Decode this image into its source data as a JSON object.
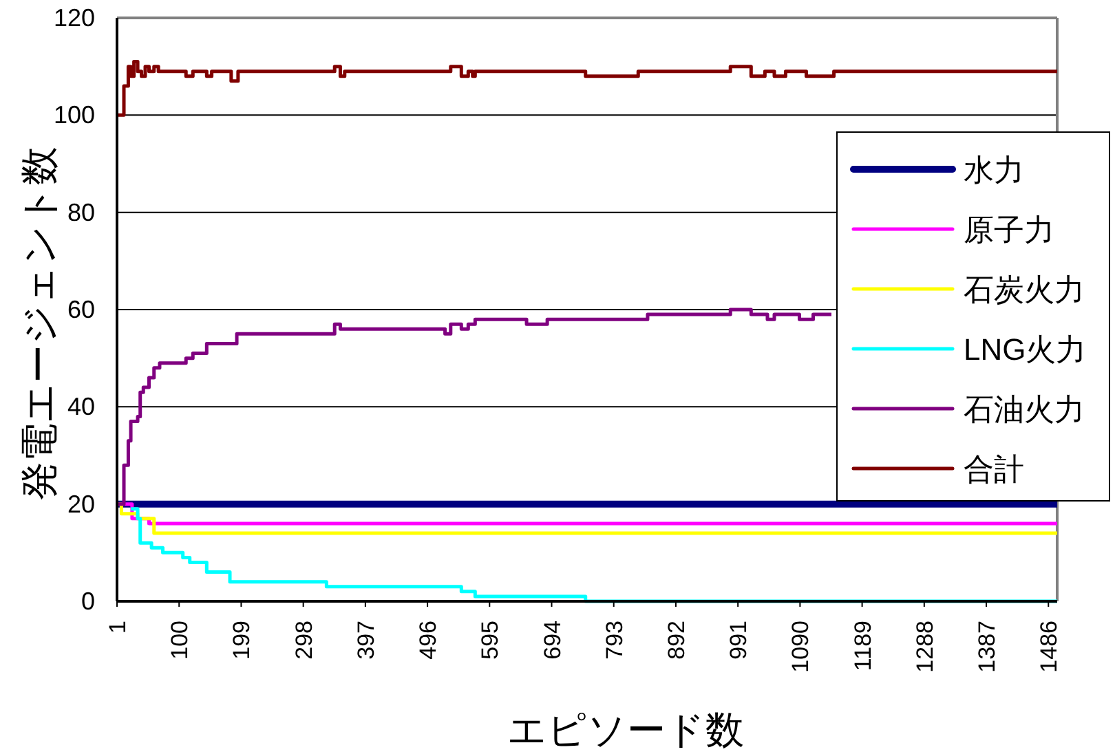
{
  "chart_data": {
    "type": "step",
    "xlabel": "エピソード数",
    "ylabel": "発電エージェント数",
    "xlim": [
      1,
      1500
    ],
    "xticks": [
      1,
      100,
      199,
      298,
      397,
      496,
      595,
      694,
      793,
      892,
      991,
      1090,
      1189,
      1288,
      1387,
      1486
    ],
    "ylim": [
      0,
      120
    ],
    "yticks": [
      0,
      20,
      40,
      60,
      80,
      100,
      120
    ],
    "grid": "y",
    "legend": "right",
    "marker": "none",
    "line_style": "solid",
    "series": [
      {
        "name": "水力",
        "color": "#000080",
        "x": [
          1,
          1500
        ],
        "values": [
          20,
          20
        ]
      },
      {
        "name": "原子力",
        "color": "#ff00ff",
        "x": [
          1,
          25,
          52,
          1500
        ],
        "values": [
          20,
          17,
          16,
          16
        ]
      },
      {
        "name": "石炭火力",
        "color": "#ffff00",
        "x": [
          1,
          8,
          34,
          60,
          1500
        ],
        "values": [
          20,
          18,
          17,
          14,
          14
        ]
      },
      {
        "name": "LNG火力",
        "color": "#00ffff",
        "x": [
          23,
          34,
          38,
          56,
          74,
          106,
          117,
          144,
          181,
          335,
          550,
          572,
          748,
          1500
        ],
        "values": [
          19,
          17,
          12,
          11,
          10,
          9,
          8,
          6,
          4,
          3,
          2,
          1,
          0,
          0
        ]
      },
      {
        "name": "石油火力",
        "color": "#800080",
        "x": [
          1,
          12,
          19,
          23,
          34,
          38,
          43,
          52,
          60,
          69,
          111,
          122,
          144,
          192,
          348,
          357,
          524,
          533,
          550,
          561,
          572,
          654,
          687,
          847,
          979,
          1012,
          1038,
          1049,
          1089,
          1111,
          1140
        ],
        "values": [
          20,
          28,
          33,
          37,
          38,
          43,
          44,
          46,
          48,
          49,
          50,
          51,
          53,
          55,
          57,
          56,
          55,
          57,
          56,
          57,
          58,
          57,
          58,
          59,
          60,
          59,
          58,
          59,
          58,
          59,
          59
        ]
      },
      {
        "name": "合計",
        "color": "#800000",
        "x": [
          1,
          12,
          19,
          23,
          28,
          34,
          40,
          46,
          52,
          60,
          67,
          111,
          122,
          144,
          152,
          183,
          194,
          348,
          357,
          364,
          533,
          550,
          561,
          568,
          572,
          748,
          832,
          979,
          1012,
          1034,
          1049,
          1067,
          1100,
          1144,
          1500
        ],
        "values": [
          100,
          106,
          110,
          108,
          111,
          109,
          108,
          110,
          109,
          110,
          109,
          108,
          109,
          108,
          109,
          107,
          109,
          110,
          108,
          109,
          110,
          108,
          109,
          108,
          109,
          108,
          109,
          110,
          108,
          109,
          108,
          109,
          108,
          109,
          109
        ]
      }
    ]
  }
}
